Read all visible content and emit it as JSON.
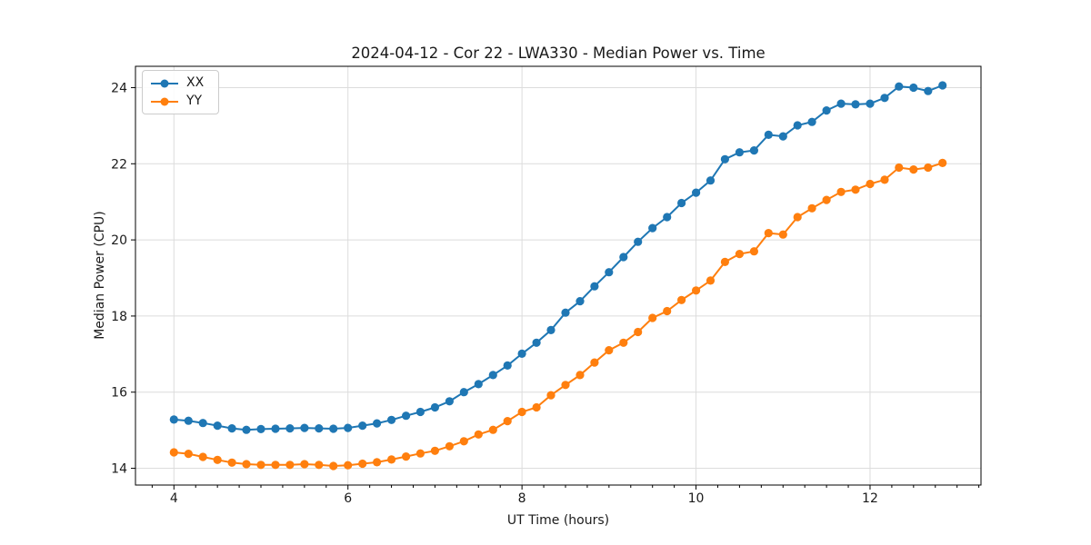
{
  "chart_data": {
    "type": "line",
    "title": "2024-04-12 - Cor 22 - LWA330 - Median Power vs. Time",
    "xlabel": "UT Time (hours)",
    "ylabel": "Median Power (CPU)",
    "x": [
      4.0,
      4.167,
      4.333,
      4.5,
      4.667,
      4.833,
      5.0,
      5.167,
      5.333,
      5.5,
      5.667,
      5.833,
      6.0,
      6.167,
      6.333,
      6.5,
      6.667,
      6.833,
      7.0,
      7.167,
      7.333,
      7.5,
      7.667,
      7.833,
      8.0,
      8.167,
      8.333,
      8.5,
      8.667,
      8.833,
      9.0,
      9.167,
      9.333,
      9.5,
      9.667,
      9.833,
      10.0,
      10.167,
      10.333,
      10.5,
      10.667,
      10.833,
      11.0,
      11.167,
      11.333,
      11.5,
      11.667,
      11.833,
      12.0,
      12.167,
      12.333,
      12.5,
      12.667,
      12.833
    ],
    "series": [
      {
        "name": "XX",
        "color": "#1f77b4",
        "values": [
          15.28,
          15.25,
          15.19,
          15.12,
          15.05,
          15.01,
          15.03,
          15.04,
          15.05,
          15.06,
          15.05,
          15.04,
          15.06,
          15.12,
          15.18,
          15.27,
          15.38,
          15.48,
          15.6,
          15.76,
          16.0,
          16.21,
          16.45,
          16.7,
          17.01,
          17.3,
          17.63,
          18.09,
          18.39,
          18.78,
          19.15,
          19.55,
          19.95,
          20.31,
          20.6,
          20.97,
          21.24,
          21.56,
          22.12,
          22.3,
          22.35,
          22.76,
          22.72,
          23.01,
          23.1,
          23.4,
          23.58,
          23.56,
          23.58,
          23.73,
          24.03,
          24.0,
          23.91,
          24.06
        ]
      },
      {
        "name": "YY",
        "color": "#ff7f0e",
        "values": [
          14.42,
          14.38,
          14.3,
          14.22,
          14.15,
          14.11,
          14.09,
          14.09,
          14.09,
          14.11,
          14.09,
          14.06,
          14.08,
          14.12,
          14.16,
          14.23,
          14.31,
          14.39,
          14.46,
          14.58,
          14.71,
          14.89,
          15.01,
          15.24,
          15.48,
          15.6,
          15.92,
          16.19,
          16.45,
          16.78,
          17.1,
          17.3,
          17.58,
          17.95,
          18.13,
          18.42,
          18.67,
          18.93,
          19.42,
          19.63,
          19.7,
          20.18,
          20.14,
          20.6,
          20.83,
          21.05,
          21.26,
          21.32,
          21.47,
          21.58,
          21.9,
          21.85,
          21.9,
          22.02
        ]
      }
    ],
    "xlim": [
      3.558,
      13.275
    ],
    "ylim": [
      13.56,
      24.56
    ],
    "xticks": [
      4,
      6,
      8,
      10,
      12
    ],
    "yticks": [
      14,
      16,
      18,
      20,
      22,
      24
    ],
    "minor_xtick_step": 0.25,
    "grid": true,
    "legend_position": "upper left",
    "grid_color": "#dcdcdc",
    "spine_color": "#000000",
    "tick_color": "#000000",
    "marker": "circle"
  }
}
